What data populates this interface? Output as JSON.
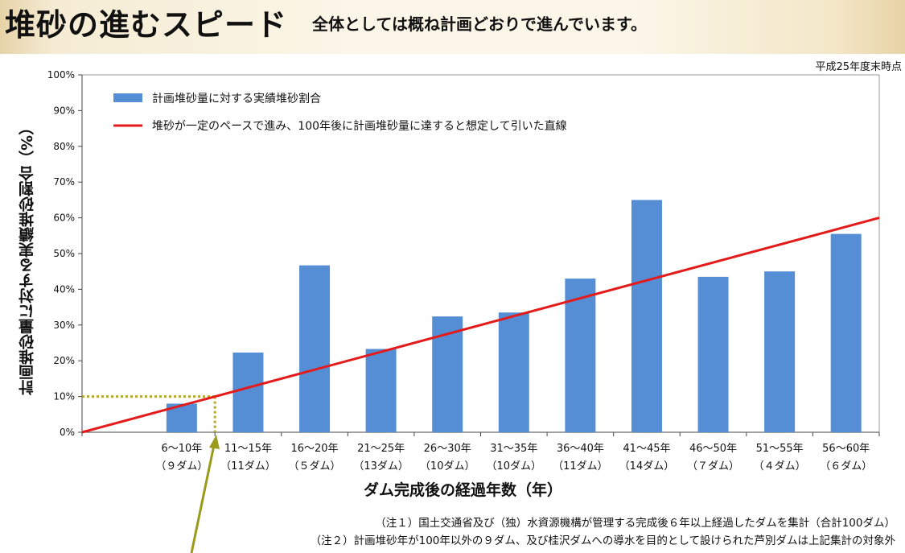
{
  "header": {
    "title": "堆砂の進むスピード",
    "subtitle": "全体としては概ね計画どおりで進んでいます。"
  },
  "as_of": "平成25年度末時点",
  "notes": [
    "（注１）国土交通省及び（独）水資源機構が管理する完成後６年以上経過したダムを集計（合計100ダム）",
    "（注２）計画堆砂年が100年以外の９ダム、及び桂沢ダムへの導水を目的として設けられた芦別ダムは上記集計の対象外"
  ],
  "colors": {
    "bar": "#558ed5",
    "line": "#e31b1b",
    "guide": "#b3a832",
    "arrow": "#9a9a1c"
  },
  "chart_data": {
    "type": "bar",
    "ylabel": "計画堆砂量に対する実績堆砂割合（%）",
    "xlabel": "ダム完成後の経過年数（年）",
    "ylim": [
      0,
      100
    ],
    "yticks": [
      "0%",
      "10%",
      "20%",
      "30%",
      "40%",
      "50%",
      "60%",
      "70%",
      "80%",
      "90%",
      "100%"
    ],
    "categories": [
      {
        "range": "6～10年",
        "count": "（９ダム）"
      },
      {
        "range": "11～15年",
        "count": "（11ダム）"
      },
      {
        "range": "16～20年",
        "count": "（５ダム）"
      },
      {
        "range": "21～25年",
        "count": "（13ダム）"
      },
      {
        "range": "26～30年",
        "count": "（10ダム）"
      },
      {
        "range": "31～35年",
        "count": "（10ダム）"
      },
      {
        "range": "36～40年",
        "count": "（11ダム）"
      },
      {
        "range": "41～45年",
        "count": "（14ダム）"
      },
      {
        "range": "46～50年",
        "count": "（７ダム）"
      },
      {
        "range": "51～55年",
        "count": "（４ダム）"
      },
      {
        "range": "56～60年",
        "count": "（６ダム）"
      }
    ],
    "series": [
      {
        "name": "計画堆砂量に対する実績堆砂割合",
        "type": "bar",
        "values": [
          8,
          22.3,
          46.7,
          23.3,
          32.4,
          33.5,
          43,
          65,
          43.5,
          45,
          55.5
        ]
      },
      {
        "name": "堆砂が一定のペースで進み、100年後に計画堆砂量に達すると想定して引いた直線",
        "type": "line",
        "x": [
          0,
          60
        ],
        "y": [
          0,
          60
        ]
      }
    ],
    "reference": {
      "x": 10,
      "y": 10
    },
    "legend": "top-left",
    "grid": false
  }
}
